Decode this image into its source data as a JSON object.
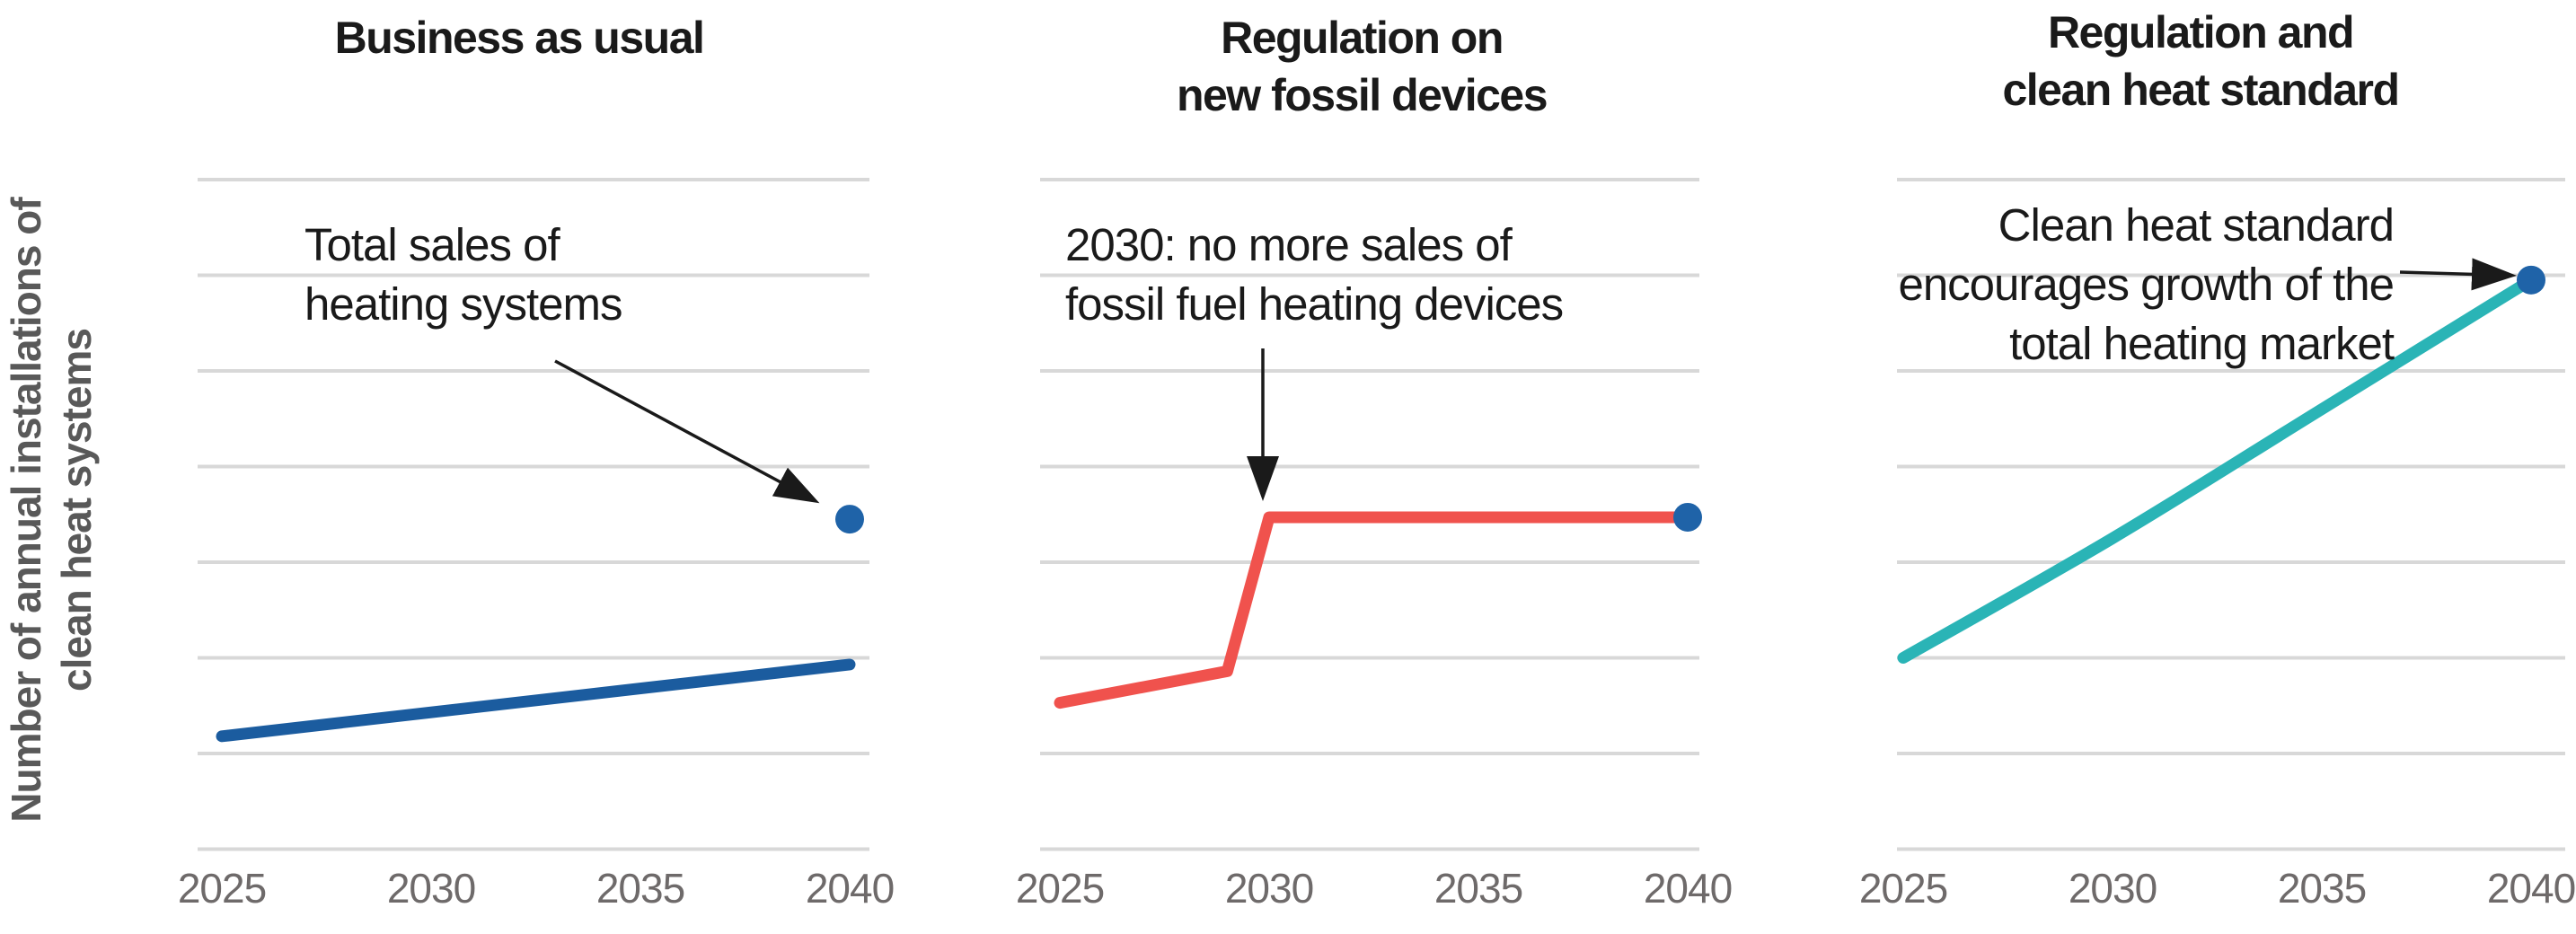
{
  "figure": {
    "ylabel": "Number of annual installations of\nclean heat systems"
  },
  "colors": {
    "background": "#ffffff",
    "gridline": "#d8d8d8",
    "axis_label": "#6e6a6a",
    "ylabel_text": "#595959",
    "title_text": "#1a1a1a",
    "annotation_text": "#1a1a1a",
    "arrow": "#1a1a1a",
    "blue_line": "#1b5c9f",
    "red_line": "#f0524d",
    "teal_line": "#2ab4b6",
    "dot_blue": "#1f63a8"
  },
  "chart_data": [
    {
      "type": "line",
      "title": "Business as usual",
      "x": [
        2025,
        2030,
        2035,
        2040
      ],
      "xlabel": "",
      "ylabel": "Number of annual installations of clean heat systems",
      "ylim": [
        0,
        7
      ],
      "grid": "horizontal gridlines only, unlabeled y-axis, values in relative units (1 unit per gridline)",
      "legend": "none",
      "series": [
        {
          "name": "Annual installations of clean heat systems",
          "color": "#1b5c9f",
          "curve": "linear",
          "values": [
            1.18,
            1.43,
            1.68,
            1.93
          ]
        }
      ],
      "end_marker": {
        "x": 2040,
        "value": 3.45,
        "color": "#1f63a8",
        "meaning": "Total sales of heating systems"
      },
      "annotation": {
        "text": "Total sales of\nheating systems",
        "arrow_to": "end marker dot"
      }
    },
    {
      "type": "line",
      "title": "Regulation on\nnew fossil devices",
      "x": [
        2025,
        2030,
        2035,
        2040
      ],
      "xlabel": "",
      "ylim": [
        0,
        7
      ],
      "series": [
        {
          "name": "Annual installations of clean heat systems",
          "color": "#f0524d",
          "curve": "linear",
          "points": [
            [
              2025,
              1.53
            ],
            [
              2029,
              1.86
            ],
            [
              2030,
              3.47
            ],
            [
              2040,
              3.47
            ]
          ]
        }
      ],
      "end_marker": {
        "x": 2040,
        "value": 3.47,
        "color": "#1f63a8",
        "meaning": "Total sales of heating systems"
      },
      "annotation": {
        "text": "2030: no more sales of\nfossil fuel heating devices",
        "arrow_to": "step up at 2030"
      }
    },
    {
      "type": "line",
      "title": "Regulation and\nclean heat standard",
      "x": [
        2025,
        2030,
        2035,
        2040
      ],
      "xlabel": "",
      "ylim": [
        0,
        7
      ],
      "series": [
        {
          "name": "Annual installations of clean heat systems",
          "color": "#2ab4b6",
          "curve": "smooth",
          "values": [
            2.0,
            3.25,
            4.6,
            5.95
          ]
        }
      ],
      "end_marker": {
        "x": 2040,
        "value": 5.95,
        "color": "#1f63a8",
        "meaning": "Total heating market grown by clean heat standard"
      },
      "annotation": {
        "text": "Clean heat standard\nencourages growth of the\ntotal heating market",
        "arrow_to": "end marker dot"
      }
    }
  ]
}
